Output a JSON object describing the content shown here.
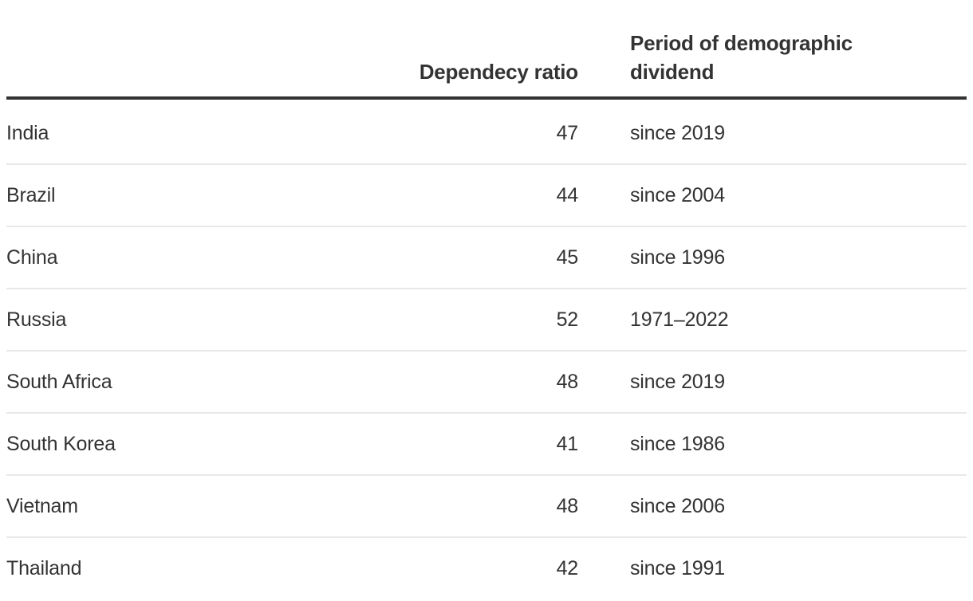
{
  "chart_data": {
    "type": "table",
    "columns": [
      "",
      "Dependecy ratio",
      "Period of demographic dividend"
    ],
    "rows": [
      [
        "India",
        47,
        "since 2019"
      ],
      [
        "Brazil",
        44,
        "since 2004"
      ],
      [
        "China",
        45,
        "since 1996"
      ],
      [
        "Russia",
        52,
        "1971–2022"
      ],
      [
        "South Africa",
        48,
        "since 2019"
      ],
      [
        "South Korea",
        41,
        "since 1986"
      ],
      [
        "Vietnam",
        48,
        "since 2006"
      ],
      [
        "Thailand",
        42,
        "since 1991"
      ]
    ],
    "layout_hints": {
      "ratio_column_align": "right",
      "period_column_align": "left",
      "header_rule": true,
      "row_dividers": true
    }
  },
  "colors": {
    "text": "#333333",
    "header_rule": "#333333",
    "row_divider": "#e8e8e8",
    "background": "#ffffff"
  }
}
